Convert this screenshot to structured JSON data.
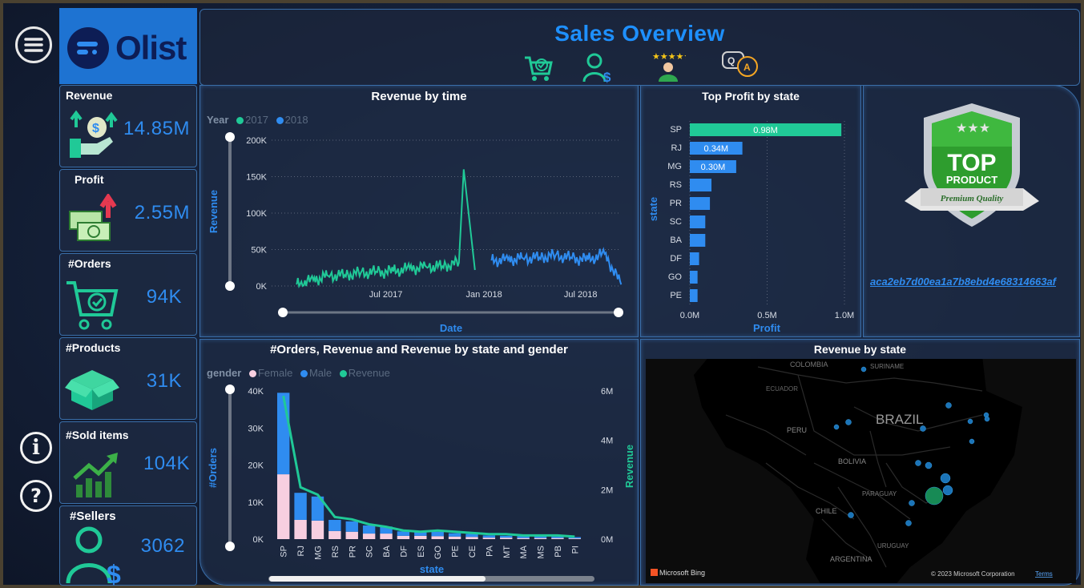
{
  "header": {
    "title": "Sales Overview",
    "brand": "Olist",
    "nav_icons": [
      "cart-check-icon",
      "customer-dollar-icon",
      "rating-stars-icon",
      "qa-icon"
    ]
  },
  "sidebar": {
    "menu_icon": "menu-icon",
    "info_icon": "info-icon",
    "help_icon": "help-icon"
  },
  "kpis": [
    {
      "label": "Revenue",
      "value": "14.85M",
      "icon": "money-hand-icon"
    },
    {
      "label": "Profit",
      "value": "2.55M",
      "icon": "cash-up-icon"
    },
    {
      "label": "#Orders",
      "value": "94K",
      "icon": "cart-icon"
    },
    {
      "label": "#Products",
      "value": "31K",
      "icon": "box-icon"
    },
    {
      "label": "#Sold items",
      "value": "104K",
      "icon": "growth-chart-icon"
    },
    {
      "label": "#Sellers",
      "value": "3062",
      "icon": "seller-icon"
    }
  ],
  "badge": {
    "top": "TOP",
    "product": "PRODUCT",
    "ribbon": "Premium Quality",
    "link": "aca2eb7d00ea1a7b8ebd4e68314663af"
  },
  "colors": {
    "accent": "#2f8cf0",
    "teal": "#20c997",
    "pink": "#f7cfe0",
    "title": "#1e90ff"
  },
  "chart_data": [
    {
      "type": "line",
      "title": "Revenue by time",
      "legend_title": "Year",
      "series": [
        {
          "name": "2017",
          "color": "#20c997",
          "x": [
            "2017-01",
            "2017-02",
            "2017-03",
            "2017-04",
            "2017-05",
            "2017-06",
            "2017-07",
            "2017-08",
            "2017-09",
            "2017-10",
            "2017-11",
            "2017-11-24",
            "2017-12"
          ],
          "values": [
            2000,
            8000,
            14000,
            15000,
            18000,
            19000,
            20000,
            24000,
            26000,
            27000,
            32000,
            160000,
            22000
          ]
        },
        {
          "name": "2018",
          "color": "#2f8cf0",
          "x": [
            "2018-01",
            "2018-02",
            "2018-03",
            "2018-04",
            "2018-05",
            "2018-06",
            "2018-07",
            "2018-08",
            "2018-09"
          ],
          "values": [
            35000,
            36000,
            38000,
            39000,
            42000,
            38000,
            36000,
            44000,
            2000
          ]
        }
      ],
      "x_ticks": [
        "Jul 2017",
        "Jan 2018",
        "Jul 2018"
      ],
      "y_ticks": [
        "0K",
        "50K",
        "100K",
        "150K",
        "200K"
      ],
      "ylim": [
        0,
        200000
      ],
      "xlabel": "Date",
      "ylabel": "Revenue"
    },
    {
      "type": "bar",
      "title": "Top Profit by state",
      "categories": [
        "SP",
        "RJ",
        "MG",
        "RS",
        "PR",
        "SC",
        "BA",
        "DF",
        "GO",
        "PE"
      ],
      "values": [
        0.98,
        0.34,
        0.3,
        0.14,
        0.13,
        0.1,
        0.1,
        0.06,
        0.05,
        0.05
      ],
      "data_labels": [
        "0.98M",
        "0.34M",
        "0.30M",
        "",
        "",
        "",
        "",
        "",
        "",
        ""
      ],
      "x_ticks": [
        "0.0M",
        "0.5M",
        "1.0M"
      ],
      "xlim": [
        0,
        1.0
      ],
      "xlabel": "Profit",
      "ylabel": "state"
    },
    {
      "type": "bar",
      "title": "#Orders, Revenue and Revenue by state and gender",
      "legend_title": "gender",
      "legend": [
        "Female",
        "Male",
        "Revenue"
      ],
      "categories": [
        "SP",
        "RJ",
        "MG",
        "RS",
        "PR",
        "SC",
        "BA",
        "DF",
        "ES",
        "GO",
        "PE",
        "CE",
        "PA",
        "MT",
        "MA",
        "MS",
        "PB",
        "PI"
      ],
      "series": [
        {
          "name": "Female",
          "color": "#f7cfe0",
          "values": [
            17500,
            5200,
            5000,
            2200,
            2000,
            1500,
            1500,
            900,
            900,
            800,
            700,
            600,
            400,
            400,
            300,
            300,
            300,
            200
          ]
        },
        {
          "name": "Male",
          "color": "#2f8cf0",
          "values": [
            22000,
            7300,
            6500,
            3000,
            2800,
            2200,
            1900,
            1200,
            1100,
            1200,
            900,
            800,
            600,
            500,
            500,
            500,
            400,
            350
          ]
        },
        {
          "name": "Revenue",
          "color": "#20c997",
          "axis": "right",
          "values": [
            5.8,
            2.1,
            1.8,
            0.9,
            0.8,
            0.6,
            0.5,
            0.35,
            0.3,
            0.35,
            0.3,
            0.25,
            0.2,
            0.2,
            0.15,
            0.15,
            0.15,
            0.1
          ]
        }
      ],
      "y_ticks": [
        "0K",
        "10K",
        "20K",
        "30K",
        "40K"
      ],
      "ylim": [
        0,
        40000
      ],
      "y2_ticks": [
        "0M",
        "2M",
        "4M",
        "6M"
      ],
      "y2lim": [
        0,
        6
      ],
      "xlabel": "state",
      "ylabel": "#Orders",
      "y2label": "Revenue"
    }
  ],
  "map": {
    "title": "Revenue by state",
    "labels": [
      "COLOMBIA",
      "SURINAME",
      "ECUADOR",
      "PERU",
      "BRAZIL",
      "BOLIVIA",
      "PARAGUAY",
      "CHILE",
      "URUGUAY",
      "ARGENTINA"
    ],
    "footer_brand": "Microsoft Bing",
    "copyright": "© 2023 Microsoft Corporation",
    "terms": "Terms"
  }
}
